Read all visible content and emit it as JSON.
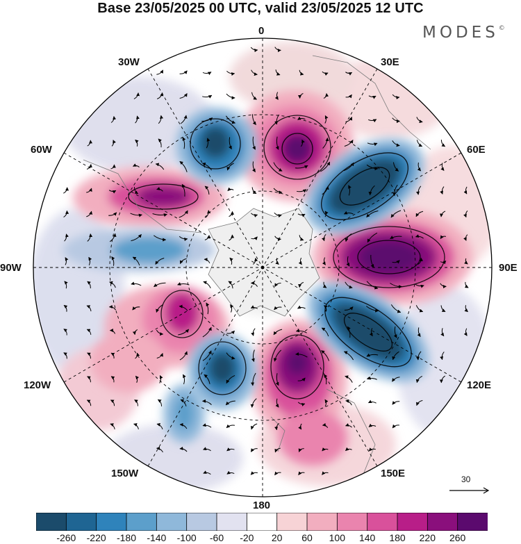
{
  "title": "Base 23/05/2025 00 UTC, valid 23/05/2025 12 UTC",
  "brand": {
    "name": "MODES",
    "mark": "©"
  },
  "longitude_labels": {
    "lon_0": "0",
    "lon_30e": "30E",
    "lon_60e": "60E",
    "lon_90e": "90E",
    "lon_120e": "120E",
    "lon_150e": "150E",
    "lon_180": "180",
    "lon_150w": "150W",
    "lon_120w": "120W",
    "lon_90w": "90W",
    "lon_60w": "60W",
    "lon_30w": "30W"
  },
  "wind_reference": {
    "value": "30"
  },
  "colorbar": {
    "ticks": [
      "-260",
      "-220",
      "-180",
      "-140",
      "-100",
      "-60",
      "-20",
      "20",
      "60",
      "100",
      "140",
      "180",
      "220",
      "260"
    ],
    "colors": [
      "#1b4b6b",
      "#1f6593",
      "#2f83bb",
      "#5c9fcb",
      "#8fb8da",
      "#b8c9e2",
      "#e2e2f0",
      "#ffffff",
      "#f7d3d6",
      "#f2aebf",
      "#ea84ae",
      "#d9519b",
      "#b81e88",
      "#8a0f7c",
      "#5b0a6e"
    ]
  },
  "colors": {
    "frame": "#000000",
    "land": "#9a9a9a"
  }
}
